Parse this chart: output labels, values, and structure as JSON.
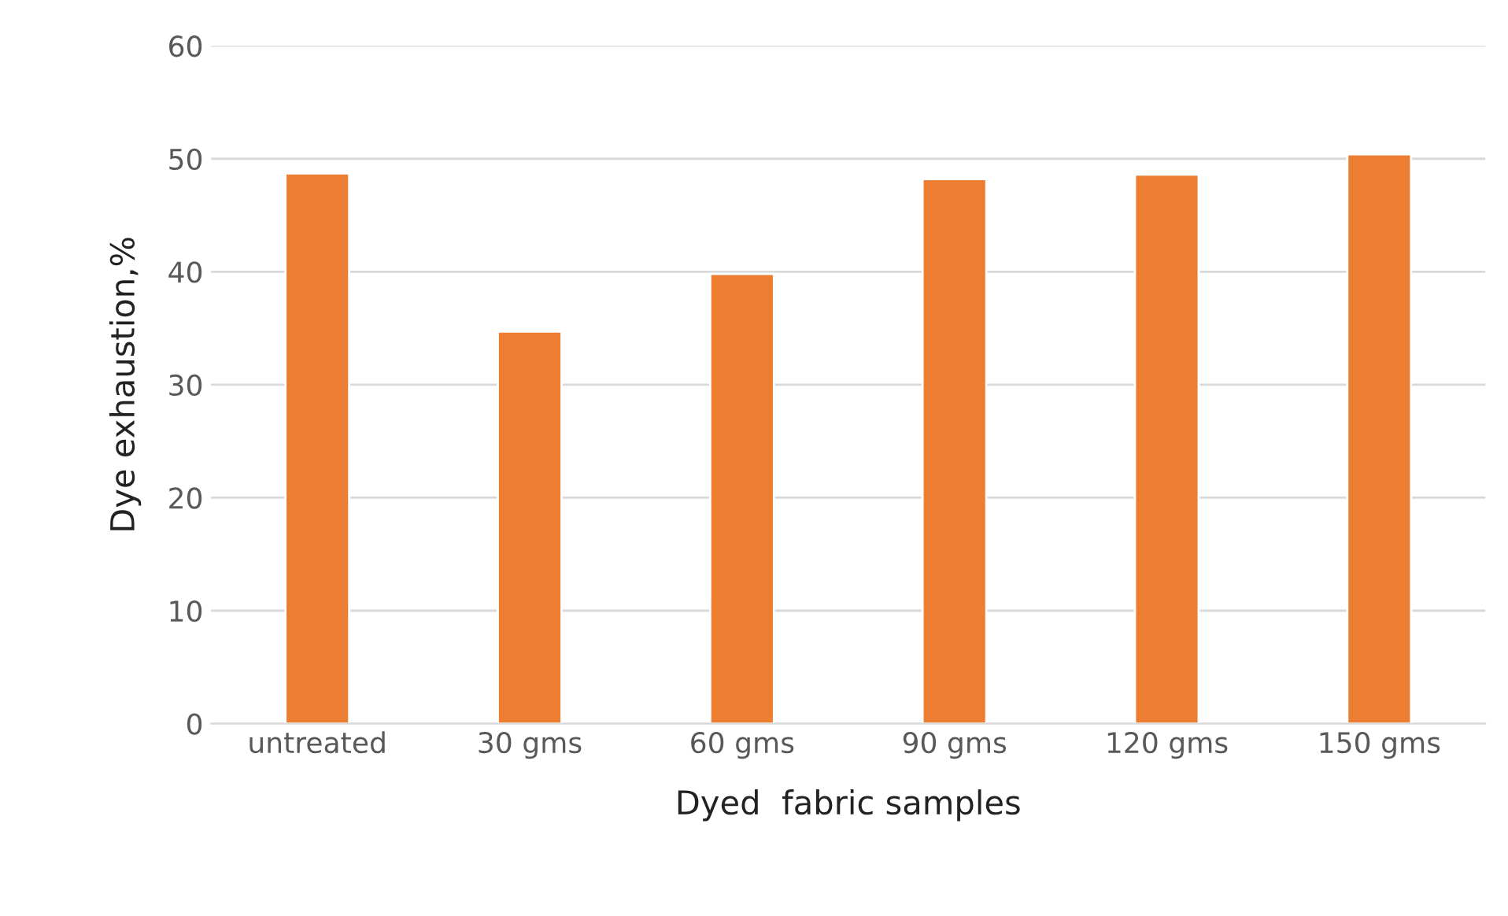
{
  "chart_data": {
    "type": "bar",
    "xlabel": "Dyed  fabric samples",
    "ylabel": "Dye exhaustion,%",
    "categories": [
      "untreated",
      "30 gms",
      "60 gms",
      "90 gms",
      "120 gms",
      "150 gms"
    ],
    "values": [
      48.7,
      34.7,
      39.8,
      48.2,
      48.6,
      50.4
    ],
    "color": "#ed7d31",
    "ylim": [
      0,
      60
    ],
    "yticks": [
      0,
      10,
      20,
      30,
      40,
      50,
      60
    ],
    "grid": "y"
  }
}
